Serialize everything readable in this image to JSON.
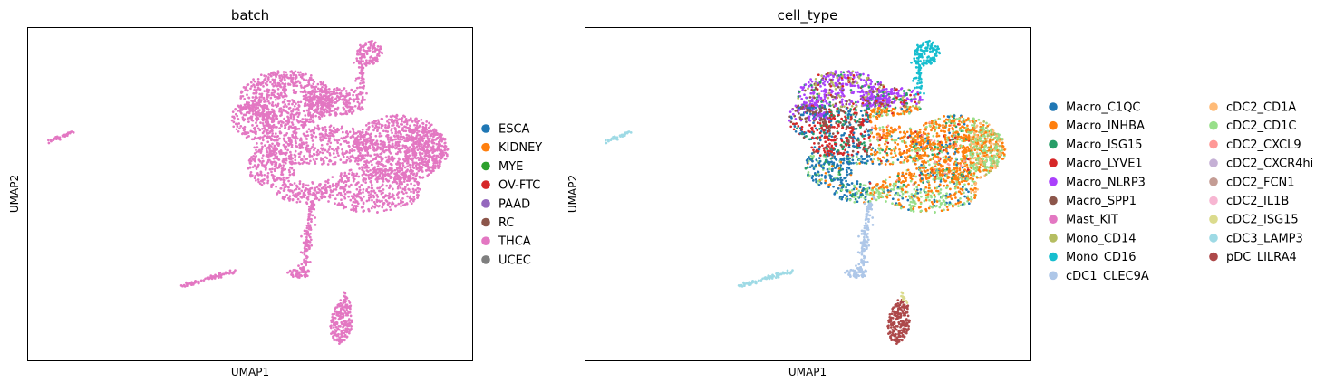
{
  "chart_data": [
    {
      "type": "scatter",
      "title": "batch",
      "xlabel": "UMAP1",
      "ylabel": "UMAP2",
      "grid": false,
      "legend_position": "right",
      "legend": [
        {
          "name": "ESCA",
          "color": "#1f77b4"
        },
        {
          "name": "KIDNEY",
          "color": "#ff7f0e"
        },
        {
          "name": "MYE",
          "color": "#2ca02c"
        },
        {
          "name": "OV-FTC",
          "color": "#d62728"
        },
        {
          "name": "PAAD",
          "color": "#9467bd"
        },
        {
          "name": "RC",
          "color": "#8c564b"
        },
        {
          "name": "THCA",
          "color": "#e377c2"
        },
        {
          "name": "UCEC",
          "color": "#7f7f7f"
        }
      ],
      "point_color": "#e377c2"
    },
    {
      "type": "scatter",
      "title": "cell_type",
      "xlabel": "UMAP1",
      "ylabel": "UMAP2",
      "grid": false,
      "legend_position": "right",
      "legend": [
        {
          "name": "Macro_C1QC",
          "color": "#1f77b4"
        },
        {
          "name": "Macro_INHBA",
          "color": "#ff7f0e"
        },
        {
          "name": "Macro_ISG15",
          "color": "#279e68"
        },
        {
          "name": "Macro_LYVE1",
          "color": "#d62728"
        },
        {
          "name": "Macro_NLRP3",
          "color": "#aa40fc"
        },
        {
          "name": "Macro_SPP1",
          "color": "#8c564b"
        },
        {
          "name": "Mast_KIT",
          "color": "#e377c2"
        },
        {
          "name": "Mono_CD14",
          "color": "#b5bd61"
        },
        {
          "name": "Mono_CD16",
          "color": "#17becf"
        },
        {
          "name": "cDC1_CLEC9A",
          "color": "#aec7e8"
        },
        {
          "name": "cDC2_CD1A",
          "color": "#ffbb78"
        },
        {
          "name": "cDC2_CD1C",
          "color": "#98df8a"
        },
        {
          "name": "cDC2_CXCL9",
          "color": "#ff9896"
        },
        {
          "name": "cDC2_CXCR4hi",
          "color": "#c5b0d5"
        },
        {
          "name": "cDC2_FCN1",
          "color": "#c49c94"
        },
        {
          "name": "cDC2_IL1B",
          "color": "#f7b6d2"
        },
        {
          "name": "cDC2_ISG15",
          "color": "#dbdb8d"
        },
        {
          "name": "cDC3_LAMP3",
          "color": "#9edae5"
        },
        {
          "name": "pDC_LILRA4",
          "color": "#ad494a"
        }
      ]
    }
  ]
}
